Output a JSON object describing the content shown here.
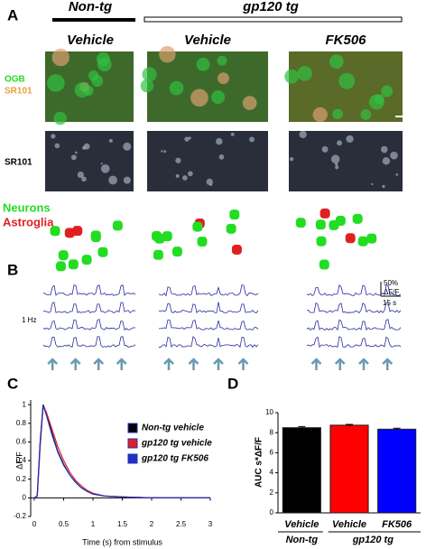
{
  "figure": {
    "panel_labels": [
      "A",
      "B",
      "C",
      "D"
    ],
    "groups": [
      "Non-tg",
      "gp120 tg"
    ],
    "columns": [
      "Vehicle",
      "Vehicle",
      "FK506"
    ],
    "row_labels": {
      "ogb": "OGB",
      "sr101_overlay": "SR101",
      "sr101": "SR101",
      "neurons": "Neurons",
      "astroglia": "Astroglia"
    },
    "stim_rate": "1 Hz",
    "scale_y": "50%",
    "scale_y_unit": "ΔF/F",
    "scale_x": "15 s"
  },
  "chart_data": [
    {
      "type": "line",
      "ylabel": "ΔF/F",
      "xlabel": "Time (s) from stimulus",
      "x": [
        0,
        0.05,
        0.1,
        0.15,
        0.2,
        0.3,
        0.4,
        0.5,
        0.6,
        0.7,
        0.8,
        0.9,
        1.0,
        1.2,
        1.5,
        2,
        2.5,
        3
      ],
      "series": [
        {
          "name": "Non-tg vehicle",
          "color": "#000000",
          "values": [
            0,
            0.02,
            0.6,
            1.0,
            0.92,
            0.7,
            0.5,
            0.36,
            0.25,
            0.17,
            0.11,
            0.07,
            0.04,
            0.02,
            0.01,
            0,
            0,
            0
          ]
        },
        {
          "name": "gp120 tg vehicle",
          "color": "#e02020",
          "values": [
            0,
            0.02,
            0.55,
            0.98,
            0.93,
            0.74,
            0.55,
            0.4,
            0.28,
            0.19,
            0.13,
            0.08,
            0.05,
            0.02,
            0.01,
            0,
            0,
            0
          ]
        },
        {
          "name": "gp120 tg FK506",
          "color": "#2030c0",
          "values": [
            0,
            0.02,
            0.58,
            0.99,
            0.9,
            0.68,
            0.49,
            0.35,
            0.25,
            0.17,
            0.11,
            0.07,
            0.04,
            0.02,
            0.01,
            0,
            0,
            0
          ]
        }
      ],
      "xlim": [
        0,
        3
      ],
      "ylim": [
        -0.2,
        1.05
      ],
      "xticks": [
        0,
        0.5,
        1,
        1.5,
        2,
        2.5,
        3
      ],
      "yticks": [
        -0.2,
        0,
        0.2,
        0.4,
        0.6,
        0.8,
        1
      ]
    },
    {
      "type": "bar",
      "ylabel": "AUC s*ΔF/F",
      "categories": [
        "Vehicle",
        "Vehicle",
        "FK506"
      ],
      "category_groups": [
        "Non-tg",
        "gp120 tg"
      ],
      "values": [
        8.5,
        8.75,
        8.35
      ],
      "errors": [
        0.12,
        0.08,
        0.1
      ],
      "colors": [
        "#000000",
        "#ff0000",
        "#0000ff"
      ],
      "ylim": [
        0,
        10
      ],
      "yticks": [
        0,
        2,
        4,
        6,
        8,
        10
      ]
    }
  ]
}
